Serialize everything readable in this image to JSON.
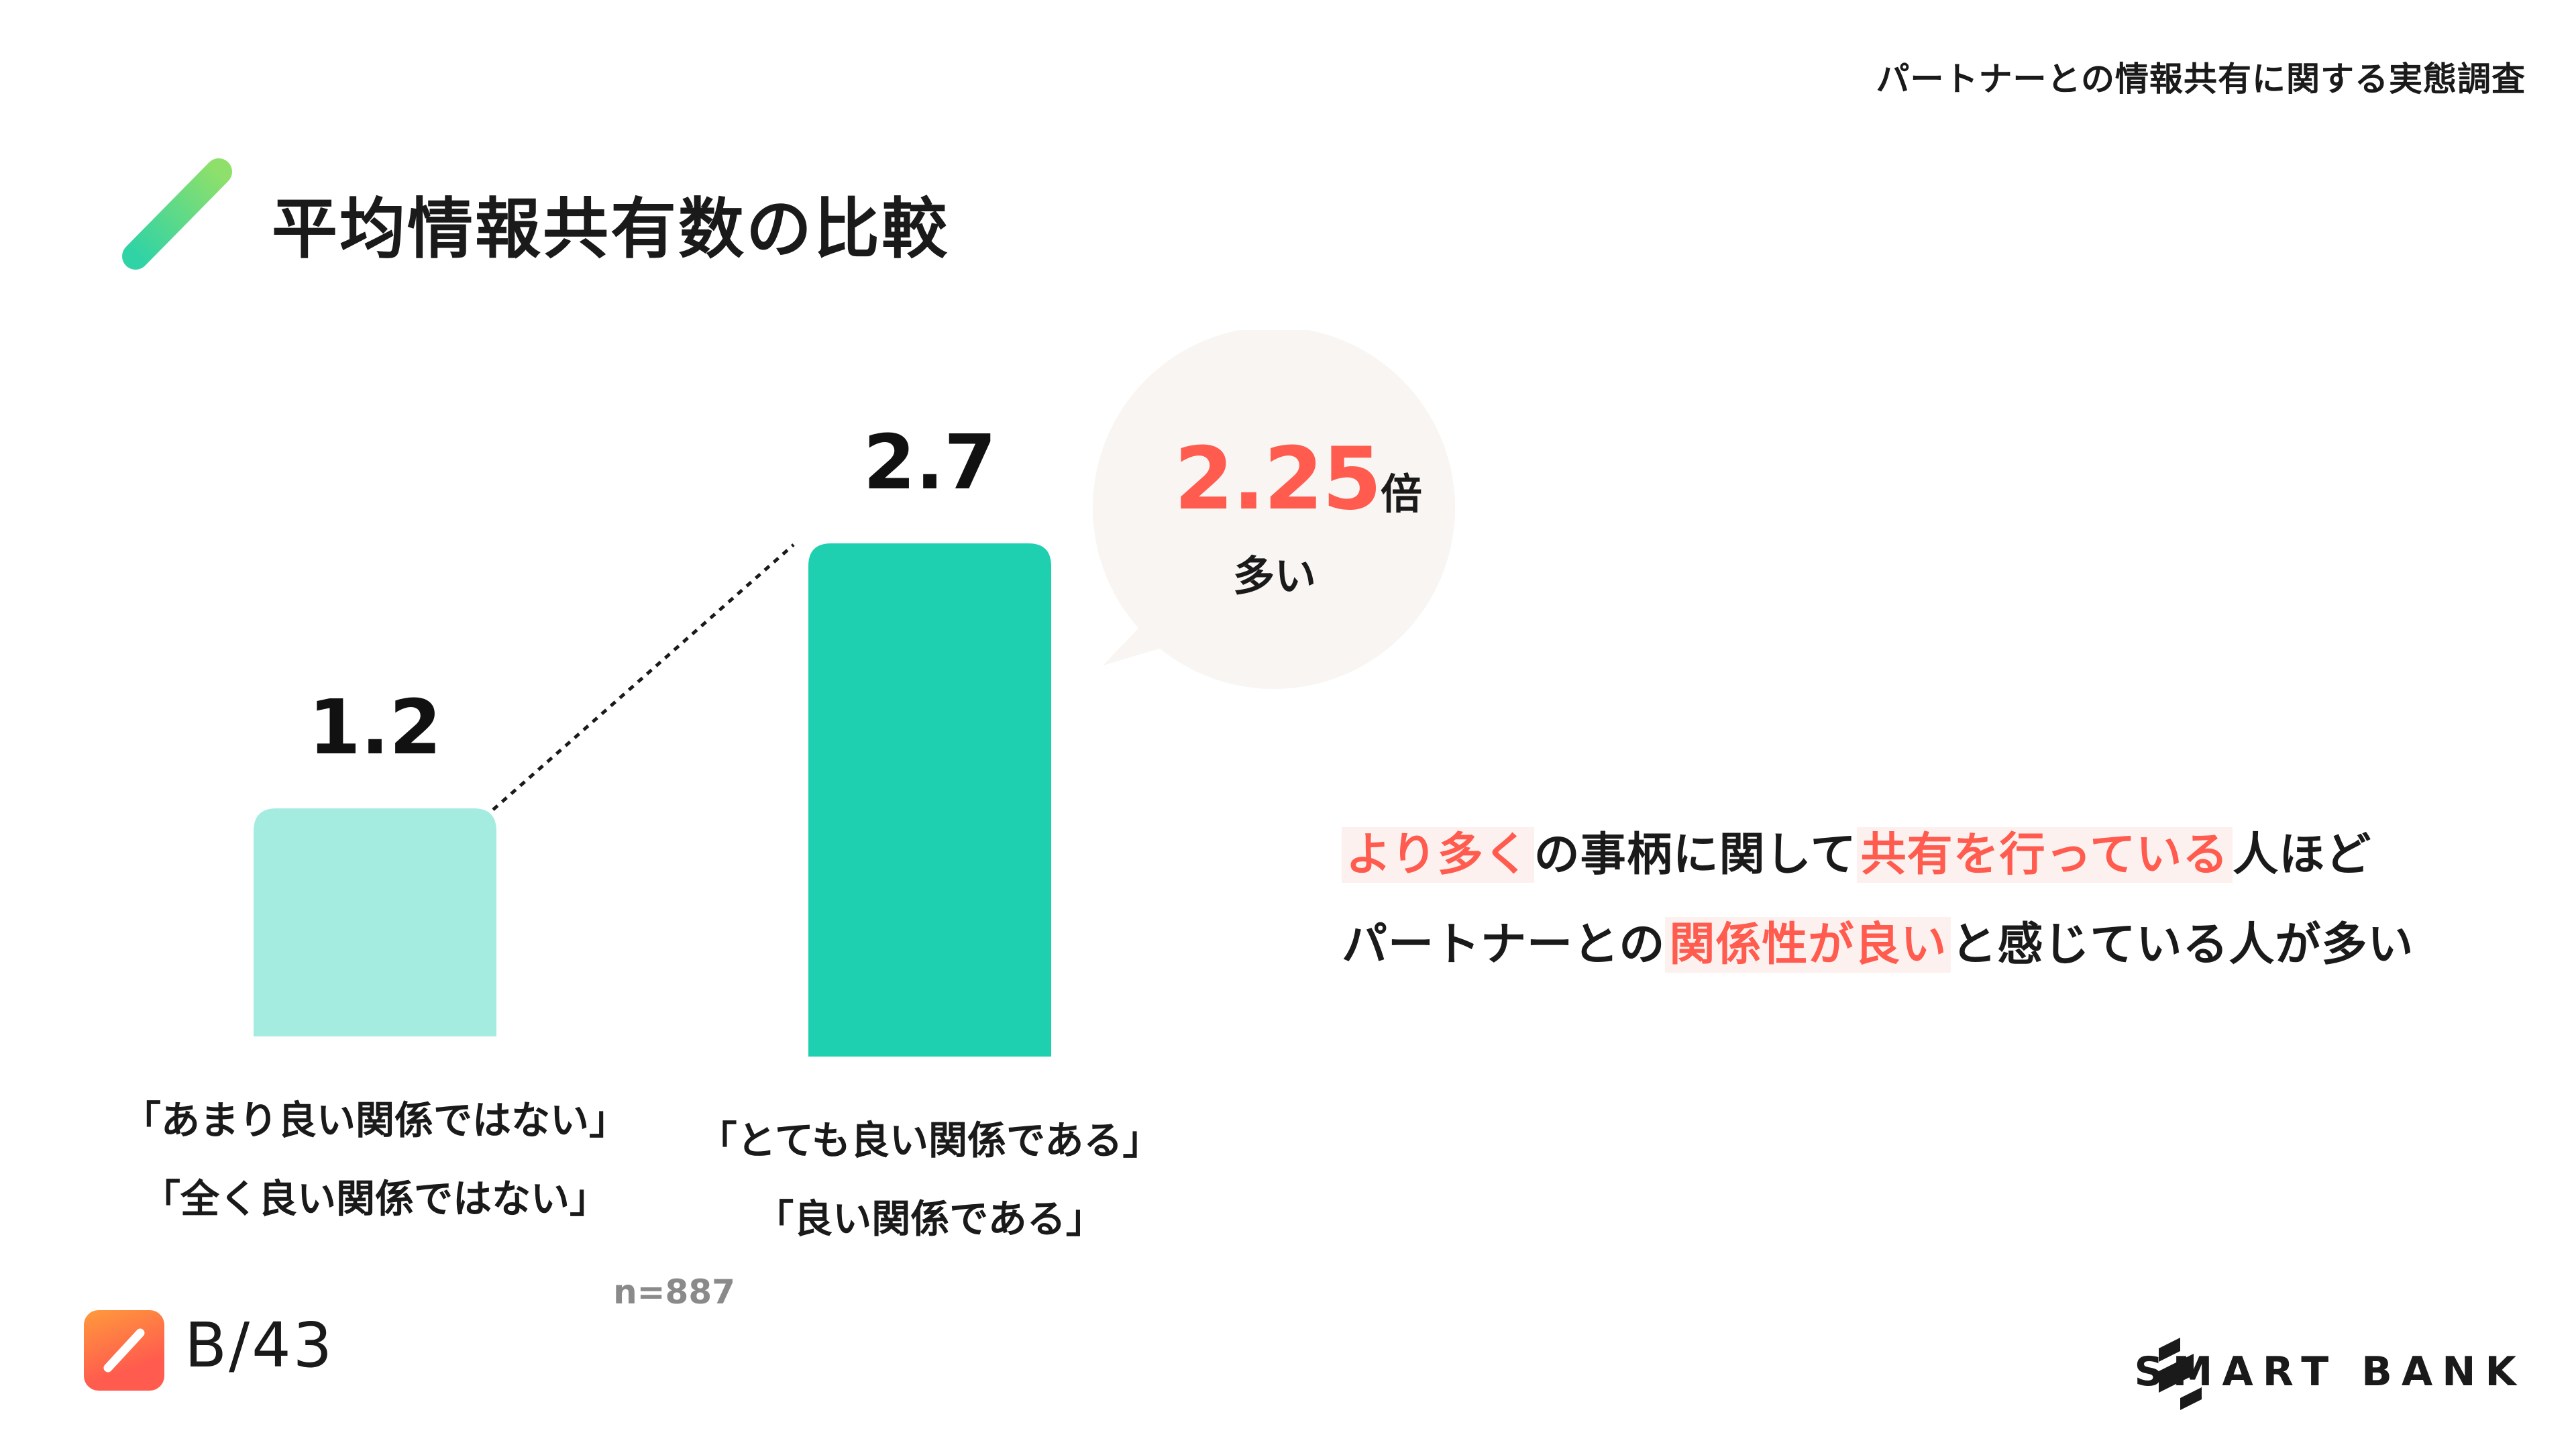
{
  "header": {
    "survey_title": "パートナーとの情報共有に関する実態調査"
  },
  "page_title": "平均情報共有数の比較",
  "colors": {
    "bar_low": "#a5ece0",
    "bar_high": "#1ecfb0",
    "accent": "#ff5b4e",
    "bubble": "#f8f5f2",
    "title_mark_start": "#2fd3a6",
    "title_mark_end": "#8ee06a"
  },
  "chart_data": {
    "type": "bar",
    "categories": [
      [
        "「あまり良い関係ではない」",
        "「全く良い関係ではない」"
      ],
      [
        "「とても良い関係である」",
        "「良い関係である」"
      ]
    ],
    "values": [
      1.2,
      2.7
    ],
    "value_labels": [
      "1.2",
      "2.7"
    ],
    "ylim": [
      0,
      2.7
    ],
    "grid": false,
    "connector": "dotted line between bar tops",
    "sample_size": "n=887"
  },
  "callout": {
    "ratio_value": "2.25",
    "ratio_unit": "倍",
    "ratio_text": "多い"
  },
  "summary": {
    "line1": [
      {
        "text": "より多く",
        "highlight": true
      },
      {
        "text": "の事柄に関して",
        "highlight": false
      },
      {
        "text": "共有を行っている",
        "highlight": true
      },
      {
        "text": "人ほど",
        "highlight": false
      }
    ],
    "line2": [
      {
        "text": "パートナーとの",
        "highlight": false
      },
      {
        "text": "関係性が良い",
        "highlight": true
      },
      {
        "text": "と感じている人が多い",
        "highlight": false
      }
    ]
  },
  "footer": {
    "page_count": "B/43",
    "brand_name": "SMART BANK",
    "b_logo_icon": "b43-logo-icon",
    "brand_icon": "smartbank-logo-icon"
  }
}
